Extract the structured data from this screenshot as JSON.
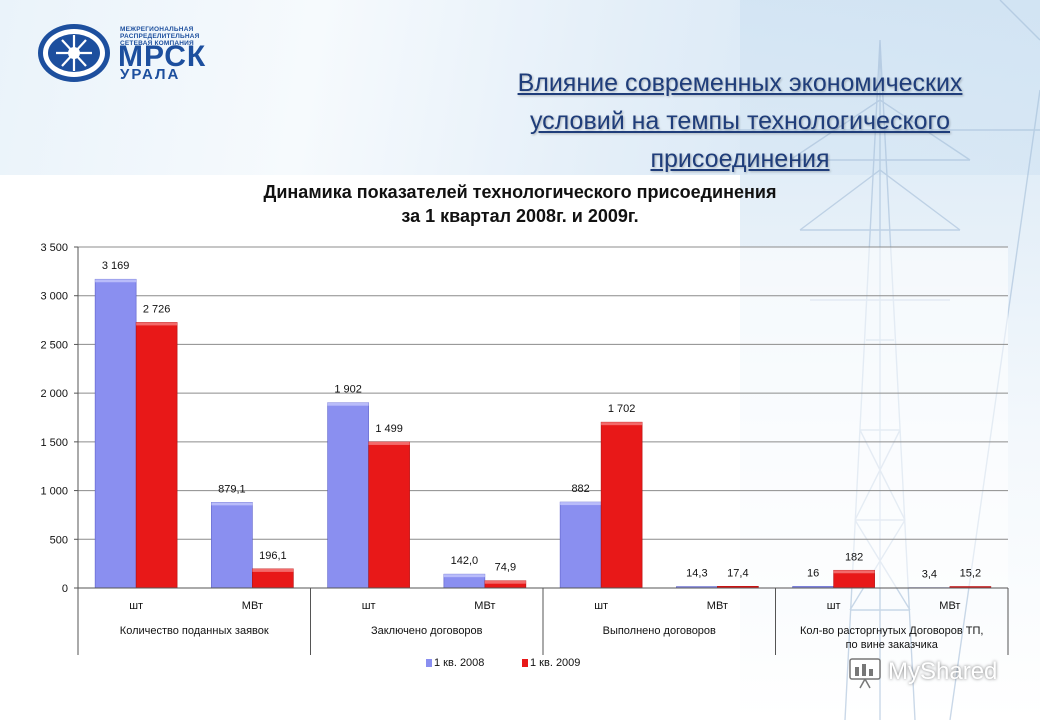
{
  "logo": {
    "small_lines": [
      "МЕЖРЕГИОНАЛЬНАЯ",
      "РАСПРЕДЕЛИТЕЛЬНАЯ",
      "СЕТЕВАЯ КОМПАНИЯ"
    ],
    "name": "МРСК",
    "region": "УРАЛА"
  },
  "slide_title": {
    "lines": [
      "Влияние  современных экономических",
      "условий на темпы технологического",
      "присоединения"
    ]
  },
  "chart_title": {
    "line1": "Динамика показателей технологического присоединения",
    "line2": "за 1 квартал 2008г. и 2009г."
  },
  "chart_data": {
    "type": "bar",
    "title": "Динамика показателей технологического присоединения за 1 квартал 2008г. и 2009г.",
    "ylim": [
      0,
      3500
    ],
    "yticks": [
      0,
      500,
      1000,
      1500,
      2000,
      2500,
      3000,
      3500
    ],
    "ytick_labels": [
      "0",
      "500",
      "1 000",
      "1 500",
      "2 000",
      "2 500",
      "3 000",
      "3 500"
    ],
    "grid": true,
    "legend_position": "bottom",
    "categories": [
      "шт",
      "МВт",
      "шт",
      "МВт",
      "шт",
      "МВт",
      "шт",
      "МВт"
    ],
    "groups": [
      {
        "label": "Количество поданных заявок",
        "span": [
          0,
          1
        ]
      },
      {
        "label": "Заключено договоров",
        "span": [
          2,
          3
        ]
      },
      {
        "label": "Выполнено договоров",
        "span": [
          4,
          5
        ]
      },
      {
        "label": "Кол-во расторгнутых Договоров ТП, по вине заказчика",
        "span": [
          6,
          7
        ]
      }
    ],
    "series": [
      {
        "name": "1 кв. 2008",
        "color": "#8a8ff0",
        "values": [
          3169,
          879.1,
          1902,
          142.0,
          882,
          14.3,
          16,
          3.4
        ],
        "labels": [
          "3 169",
          "879,1",
          "1 902",
          "142,0",
          "882",
          "14,3",
          "16",
          "3,4"
        ]
      },
      {
        "name": "1 кв. 2009",
        "color": "#e81818",
        "values": [
          2726,
          196.1,
          1499,
          74.9,
          1702,
          17.4,
          182,
          15.2
        ],
        "labels": [
          "2 726",
          "196,1",
          "1 499",
          "74,9",
          "1 702",
          "17,4",
          "182",
          "15,2"
        ]
      }
    ]
  },
  "watermark": {
    "text": "MyShared"
  }
}
